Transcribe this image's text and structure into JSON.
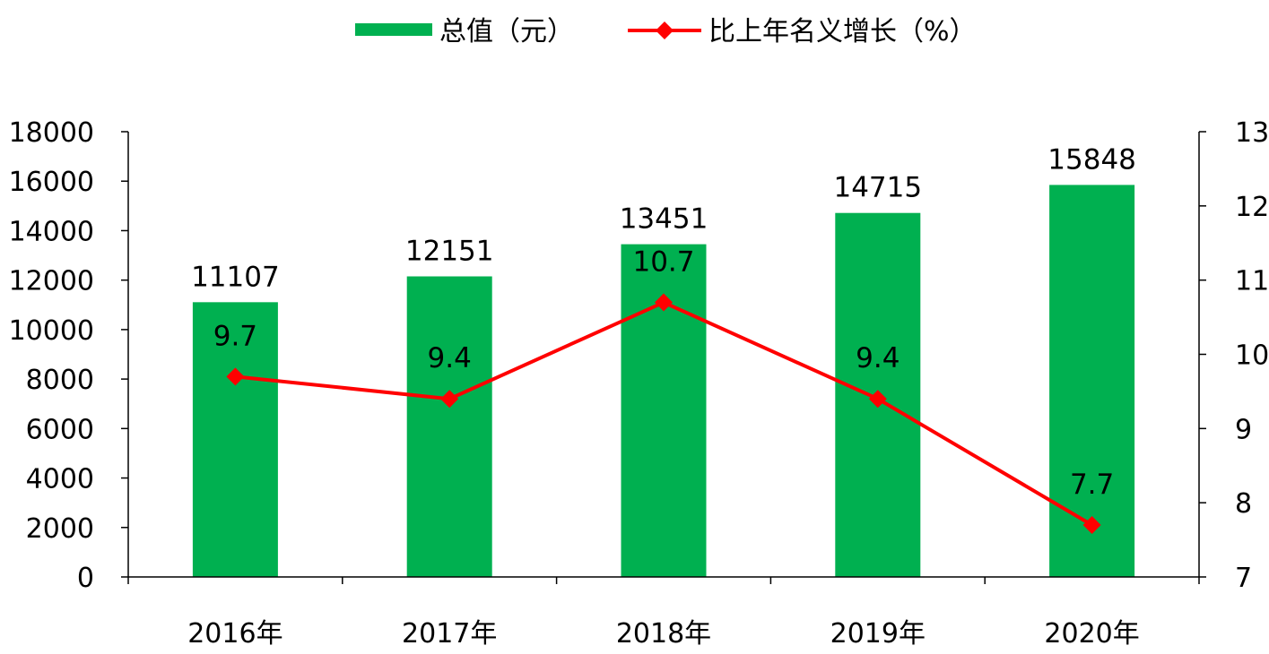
{
  "chart_data": {
    "type": "bar",
    "categories": [
      "2016年",
      "2017年",
      "2018年",
      "2019年",
      "2020年"
    ],
    "series": [
      {
        "name": "总值（元）",
        "type": "bar",
        "axis": "left",
        "color": "#00b050",
        "values": [
          11107,
          12151,
          13451,
          14715,
          15848
        ],
        "labels": [
          "11107",
          "12151",
          "13451",
          "14715",
          "15848"
        ]
      },
      {
        "name": "比上年名义增长（%）",
        "type": "line",
        "axis": "right",
        "color": "#ff0000",
        "marker": "diamond",
        "values": [
          9.7,
          9.4,
          10.7,
          9.4,
          7.7
        ],
        "labels": [
          "9.7",
          "9.4",
          "10.7",
          "9.4",
          "7.7"
        ]
      }
    ],
    "y_left": {
      "lim": [
        0,
        18000
      ],
      "ticks": [
        0,
        2000,
        4000,
        6000,
        8000,
        10000,
        12000,
        14000,
        16000,
        18000
      ]
    },
    "y_right": {
      "lim": [
        7,
        13
      ],
      "ticks": [
        7,
        8,
        9,
        10,
        11,
        12,
        13
      ]
    },
    "title": "",
    "xlabel": "",
    "ylabel": "",
    "grid": false,
    "legend_position": "top-center"
  }
}
